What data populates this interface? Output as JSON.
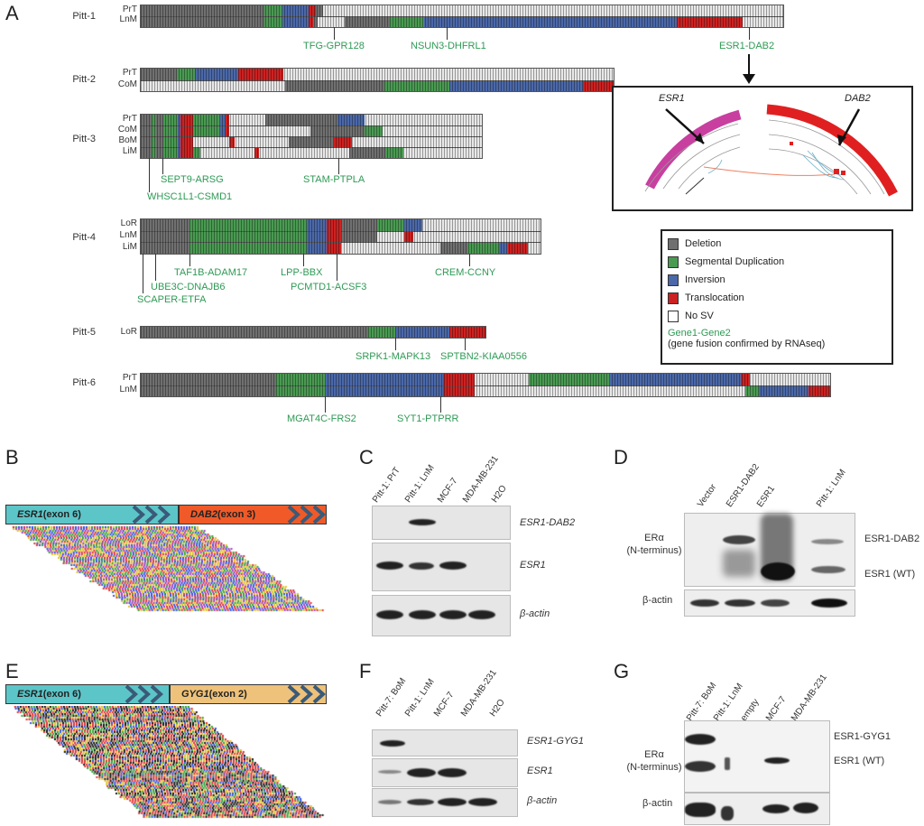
{
  "panels": {
    "A": "A",
    "B": "B",
    "C": "C",
    "D": "D",
    "E": "E",
    "F": "F",
    "G": "G"
  },
  "legend": {
    "items": [
      {
        "label": "Deletion",
        "color": "#707070"
      },
      {
        "label": "Segmental Duplication",
        "color": "#4a9a52"
      },
      {
        "label": "Inversion",
        "color": "#4b68a8"
      },
      {
        "label": "Translocation",
        "color": "#cc2222"
      },
      {
        "label": "No SV",
        "color": "#ffffff"
      }
    ],
    "fusion_example": "Gene1-Gene2",
    "fusion_note": "(gene fusion confirmed by RNAseq)"
  },
  "patients": [
    {
      "name": "Pitt-1",
      "rows": [
        "PrT",
        "LnM"
      ],
      "fusions": [
        "TFG-GPR128",
        "NSUN3-DHFRL1",
        "ESR1-DAB2"
      ]
    },
    {
      "name": "Pitt-2",
      "rows": [
        "PrT",
        "CoM"
      ],
      "fusions": []
    },
    {
      "name": "Pitt-3",
      "rows": [
        "PrT",
        "CoM",
        "BoM",
        "LiM"
      ],
      "fusions": [
        "SEPT9-ARSG",
        "WHSC1L1-CSMD1",
        "STAM-PTPLA"
      ]
    },
    {
      "name": "Pitt-4",
      "rows": [
        "LoR",
        "LnM",
        "LiM"
      ],
      "fusions": [
        "TAF1B-ADAM17",
        "UBE3C-DNAJB6",
        "SCAPER-ETFA",
        "LPP-BBX",
        "PCMTD1-ACSF3",
        "CREM-CCNY"
      ]
    },
    {
      "name": "Pitt-5",
      "rows": [
        "LoR"
      ],
      "fusions": [
        "SRPK1-MAPK13",
        "SPTBN2-KIAA0556"
      ]
    },
    {
      "name": "Pitt-6",
      "rows": [
        "PrT",
        "LnM"
      ],
      "fusions": [
        "MGAT4C-FRS2",
        "SYT1-PTPRR"
      ]
    }
  ],
  "circos": {
    "left_gene": "ESR1",
    "right_gene": "DAB2"
  },
  "panelB": {
    "exon_left": "ESR1 (exon 6)",
    "exon_right": "DAB2 (exon 3)",
    "left_gene": "ESR1",
    "left_exon": " (exon 6)",
    "right_gene": "DAB2",
    "right_exon": " (exon 3)"
  },
  "panelE": {
    "left_gene": "ESR1",
    "left_exon": " (exon 6)",
    "right_gene": "GYG1",
    "right_exon": " (exon 2)"
  },
  "panelC": {
    "lanes": [
      "Pitt-1: PrT",
      "Pitt-1: LnM",
      "MCF-7",
      "MDA-MB-231",
      "H2O"
    ],
    "rows": [
      "ESR1-DAB2",
      "ESR1",
      "β-actin"
    ]
  },
  "panelD": {
    "lanes": [
      "Vector",
      "ESR1-DAB2",
      "ESR1",
      "Pitt-1: LnM"
    ],
    "ylabel1": "ERα",
    "ylabel2": "(N-terminus)",
    "bands": [
      "ESR1-DAB2",
      "ESR1 (WT)"
    ],
    "loading": "β-actin"
  },
  "panelF": {
    "lanes": [
      "Pitt-7: BoM",
      "Pitt-1: LnM",
      "MCF-7",
      "MDA-MB-231",
      "H2O"
    ],
    "rows": [
      "ESR1-GYG1",
      "ESR1",
      "β-actin"
    ]
  },
  "panelG": {
    "lanes": [
      "Pitt-7: BoM",
      "Pitt-1: LnM",
      "empty",
      "MCF-7",
      "MDA-MB-231"
    ],
    "ylabel1": "ERα",
    "ylabel2": "(N-terminus)",
    "bands": [
      "ESR1-GYG1",
      "ESR1 (WT)"
    ],
    "loading": "β-actin"
  },
  "colors": {
    "deletion": "#707070",
    "dup": "#4a9a52",
    "inv": "#4b68a8",
    "trans": "#cc2222",
    "none": "#e8e8e8",
    "fusion_text": "#2e9a55"
  }
}
